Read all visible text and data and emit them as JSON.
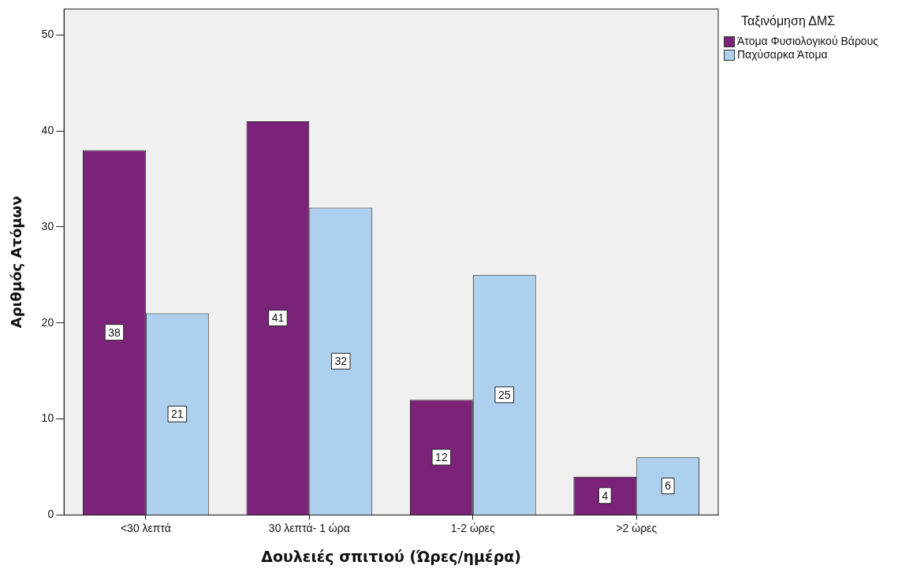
{
  "chart_data": {
    "type": "bar",
    "xlabel": "Δουλειές σπιτιού (Ώρες/ημέρα)",
    "ylabel": "Αριθμός Ατόμων",
    "legend_title": "Ταξινόμηση ΔΜΣ",
    "categories": [
      "<30 λεπτά",
      "30 λεπτά- 1 ώρα",
      "1-2 ώρες",
      ">2 ώρες"
    ],
    "series": [
      {
        "name": "Άτομα Φυσιολογικού Βάρους",
        "color": "#7b2378",
        "values": [
          38,
          41,
          12,
          4
        ]
      },
      {
        "name": "Παχύσαρκα Άτομα",
        "color": "#acd0ee",
        "values": [
          21,
          32,
          25,
          6
        ]
      }
    ],
    "ylim": [
      0,
      52.7
    ],
    "yticks": [
      0,
      10,
      20,
      30,
      40,
      50
    ],
    "grid": false,
    "legend": "top right",
    "data_labels": true
  }
}
